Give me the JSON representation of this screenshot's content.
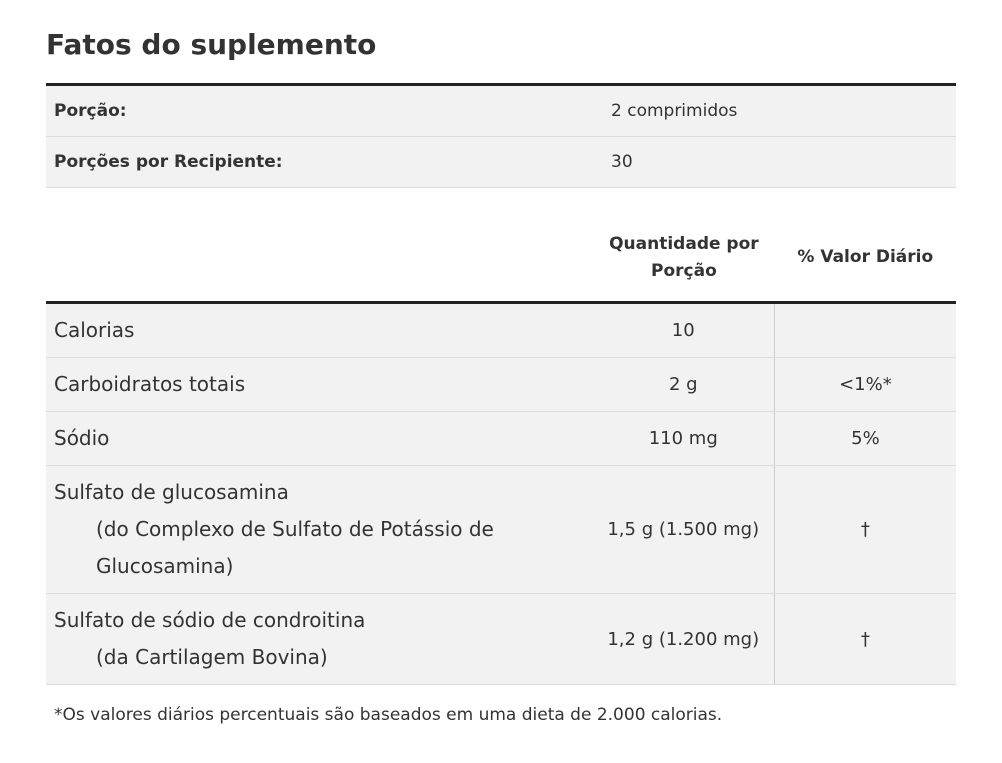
{
  "header": {
    "title": "Fatos do suplemento"
  },
  "serving": {
    "rows": [
      [
        "Porção:",
        "2 comprimidos"
      ],
      [
        "Porções por Recipiente:",
        "30"
      ]
    ]
  },
  "table": {
    "columns": [
      "Quantidade por Porção",
      "% Valor Diário"
    ],
    "rows": [
      {
        "name": "Calorias",
        "amount": "10"
      },
      {
        "name": "Carboidratos totais",
        "amount": "2 g",
        "dv": "<1%*"
      },
      {
        "name": "Sódio",
        "amount": "110 mg",
        "dv": "5%"
      },
      {
        "name": "Sulfato de glucosamina",
        "sub": "(do Complexo de Sulfato de Potássio de Glucosamina)",
        "amount": "1,5 g (1.500 mg)",
        "dv": "†"
      },
      {
        "name": "Sulfato de sódio de condroitina",
        "sub": "(da Cartilagem Bovina)",
        "amount": "1,2 g (1.200 mg)",
        "dv": "†"
      }
    ]
  },
  "footnote": "*Os valores diários percentuais são baseados em uma dieta de 2.000 calorias."
}
